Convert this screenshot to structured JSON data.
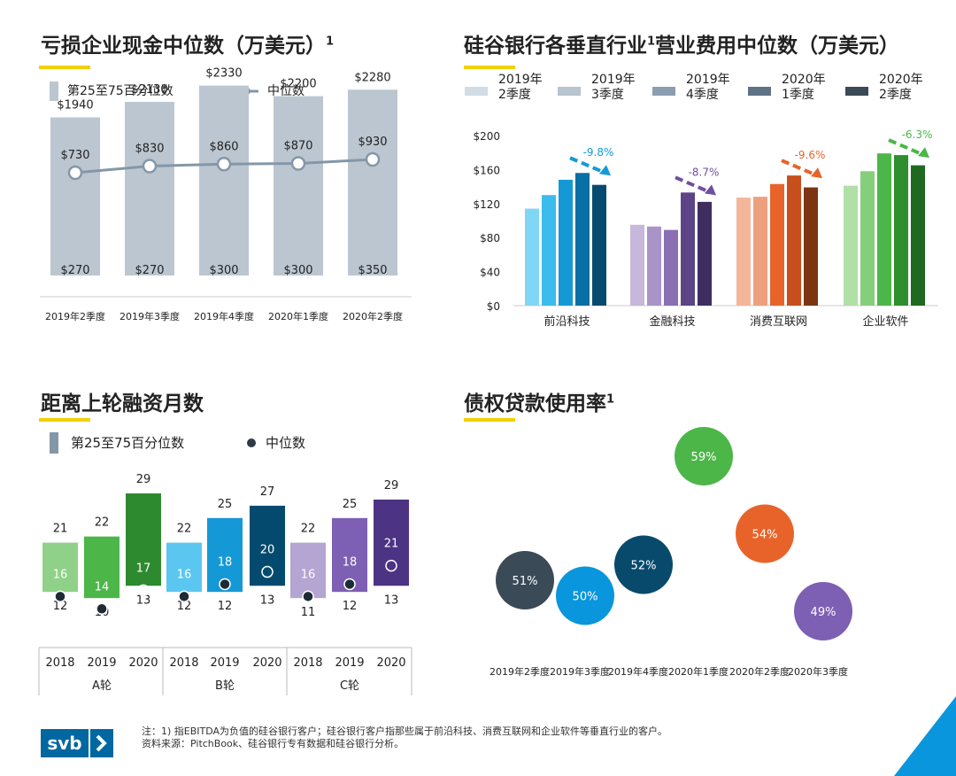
{
  "colors": {
    "accent": "#f4d000",
    "brand_blue": "#0067a0",
    "grey_band": "#bcc6d0",
    "median_line": "#8497a8"
  },
  "panels": {
    "p1": {
      "title": "亏损企业现金中位数（万美元）",
      "title_sup": "1",
      "legend_band": "第25至75百分位数",
      "legend_median": "中位数"
    },
    "p2": {
      "title": "硅谷银行各垂直行业",
      "title_sup": "1",
      "title_rest": "营业费用中位数（万美元）"
    },
    "p3": {
      "title": "距离上轮融资月数",
      "legend_band": "第25至75百分位数",
      "legend_median": "中位数"
    },
    "p4": {
      "title": "债权贷款使用率",
      "title_sup": "1"
    }
  },
  "footer": {
    "logo_text": "svb",
    "note_line1": "注：1) 指EBITDA为负值的硅谷银行客户；硅谷银行客户指那些属于前沿科技、消费互联网和企业软件等垂直行业的客户。",
    "note_line2": "资料来源：PitchBook、硅谷银行专有数据和硅谷银行分析。"
  },
  "chart_data": [
    {
      "type": "bar",
      "title": "亏损企业现金中位数（万美元）",
      "categories": [
        "2019年2季度",
        "2019年3季度",
        "2019年4季度",
        "2020年1季度",
        "2020年2季度"
      ],
      "p25": [
        270,
        270,
        300,
        300,
        350
      ],
      "p75": [
        1940,
        2130,
        2330,
        2200,
        2280
      ],
      "median": [
        730,
        830,
        860,
        870,
        930
      ],
      "p25_labels": [
        "$270",
        "$270",
        "$300",
        "$300",
        "$350"
      ],
      "p75_labels": [
        "$1940",
        "$2130",
        "$2330",
        "$2200",
        "$2280"
      ],
      "median_labels": [
        "$730",
        "$830",
        "$860",
        "$870",
        "$930"
      ],
      "legend": [
        "第25至75百分位数",
        "中位数"
      ]
    },
    {
      "type": "bar",
      "categories": [
        "前沿科技",
        "金融科技",
        "消费互联网",
        "企业软件"
      ],
      "legend": [
        "2019年2季度",
        "2019年3季度",
        "2019年4季度",
        "2020年1季度",
        "2020年2季度"
      ],
      "legend_lines": [
        [
          "2019年",
          "2季度"
        ],
        [
          "2019年",
          "3季度"
        ],
        [
          "2019年",
          "4季度"
        ],
        [
          "2020年",
          "1季度"
        ],
        [
          "2020年",
          "2季度"
        ]
      ],
      "series": [
        {
          "name": "2019年2季度",
          "values": [
            114,
            95,
            127,
            141
          ]
        },
        {
          "name": "2019年3季度",
          "values": [
            130,
            93,
            128,
            158
          ]
        },
        {
          "name": "2019年4季度",
          "values": [
            148,
            89,
            143,
            179
          ]
        },
        {
          "name": "2020年1季度",
          "values": [
            156,
            133,
            153,
            177
          ]
        },
        {
          "name": "2020年2季度",
          "values": [
            142,
            122,
            139,
            165
          ]
        }
      ],
      "palettes": [
        [
          "#7fd6f5",
          "#3bbcec",
          "#1599d6",
          "#0a6fa5",
          "#064a70"
        ],
        [
          "#c7b7da",
          "#a994c8",
          "#8a6fb3",
          "#5c4487",
          "#3f2d60"
        ],
        [
          "#f4b69a",
          "#eea07e",
          "#e8632a",
          "#c64f1c",
          "#7c3512"
        ],
        [
          "#b0dfa7",
          "#86cf7a",
          "#4cb648",
          "#2f8e2e",
          "#1f6a20"
        ]
      ],
      "changes": [
        "-9.8%",
        "-8.7%",
        "-9.6%",
        "-6.3%"
      ],
      "change_colors": [
        "#1599d6",
        "#6e50a0",
        "#e8632a",
        "#4cb648"
      ],
      "yticks": [
        "$200",
        "$160",
        "$120",
        "$80",
        "$40",
        "$0"
      ],
      "ylim": [
        0,
        200
      ]
    },
    {
      "type": "bar",
      "title": "距离上轮融资月数",
      "rounds": [
        "A轮",
        "B轮",
        "C轮"
      ],
      "years": [
        "2018",
        "2019",
        "2020",
        "2018",
        "2019",
        "2020",
        "2018",
        "2019",
        "2020"
      ],
      "p25": [
        12,
        10,
        13,
        12,
        12,
        13,
        11,
        12,
        13
      ],
      "p75": [
        21,
        22,
        29,
        22,
        25,
        27,
        22,
        25,
        29
      ],
      "median": [
        16,
        14,
        17,
        16,
        18,
        20,
        16,
        18,
        21
      ],
      "box_top": [
        21,
        22,
        29,
        21,
        25,
        27,
        21,
        25,
        28
      ],
      "box_bottom": [
        13,
        12,
        14,
        13,
        13,
        14,
        12,
        13,
        14
      ],
      "colors": [
        "#8fd188",
        "#4cb648",
        "#2e8a2e",
        "#5bc7f0",
        "#1599d6",
        "#034a6e",
        "#b5a5d2",
        "#7d5fb3",
        "#4c3384"
      ],
      "legend": [
        "第25至75百分位数",
        "中位数"
      ]
    },
    {
      "type": "scatter",
      "title": "债权贷款使用率",
      "categories": [
        "2019年2季度",
        "2019年3季度",
        "2019年4季度",
        "2020年1季度",
        "2020年2季度",
        "2020年3季度"
      ],
      "values": [
        51,
        50,
        52,
        59,
        54,
        49
      ],
      "labels": [
        "51%",
        "50%",
        "52%",
        "59%",
        "54%",
        "49%"
      ],
      "colors": [
        "#3b4a57",
        "#0a96dc",
        "#084a6c",
        "#4cb648",
        "#e8632a",
        "#7d5fb3"
      ]
    }
  ]
}
